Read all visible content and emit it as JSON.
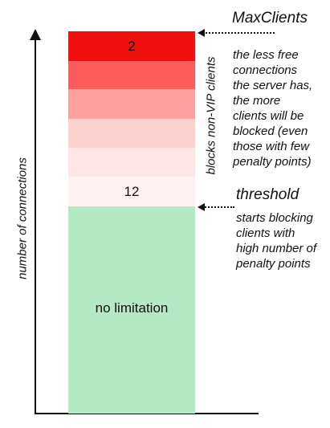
{
  "y_axis_label": "number of connections",
  "bands": {
    "top_value": "2",
    "threshold_value": "12",
    "bottom_label": "no limitation",
    "colors": {
      "band1": "#f01010",
      "band2": "#fc5c5c",
      "band3": "#fda0a0",
      "band4": "#fed1d1",
      "band5": "#ffe6e6",
      "band6": "#fff2f2",
      "green": "#b4e9c6"
    }
  },
  "vertical_label": "blocks non-VIP clients",
  "maxclients": {
    "title": "MaxClients",
    "note_lines": [
      "the less free",
      "connections",
      "the server has,",
      "the more",
      "clients will be",
      "blocked (even",
      "those with few",
      "penalty points)"
    ]
  },
  "threshold": {
    "title": "threshold",
    "note_lines": [
      "starts blocking",
      "clients with",
      "high number of",
      "penalty points"
    ]
  }
}
